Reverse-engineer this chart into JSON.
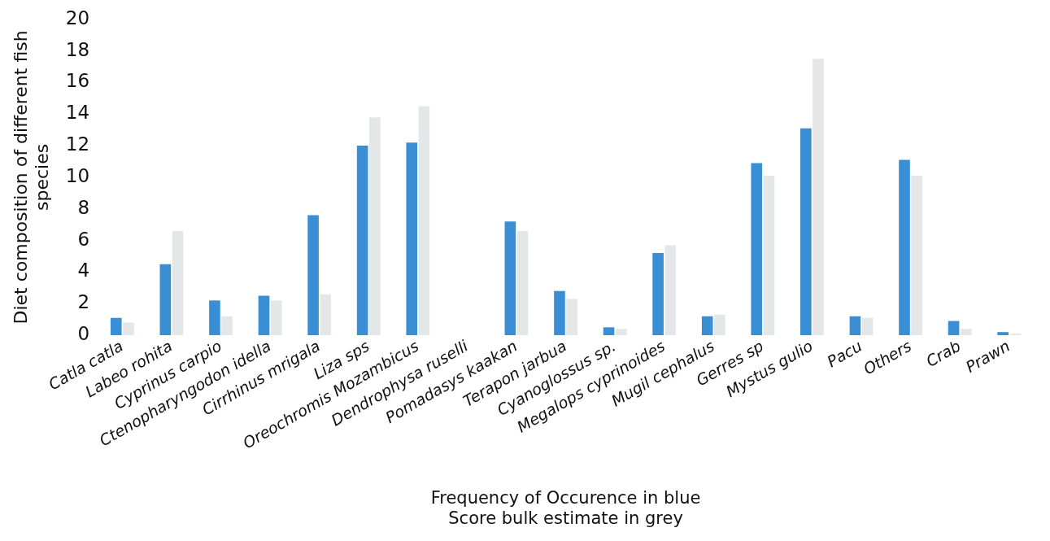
{
  "chart_data": {
    "type": "bar",
    "xlabel": "Frequency of Occurence in blue\nScore bulk estimate in grey",
    "ylabel": "Diet composition of different fish\nspecies",
    "categories": [
      "Catla catla",
      "Labeo rohita",
      "Cyprinus carpio",
      "Ctenopharyngodon idella",
      "Cirrhinus mrigala",
      "Liza sps",
      "Oreochromis Mozambicus",
      "Dendrophysa ruselli",
      "Pomadasys kaakan",
      "Terapon jarbua",
      "Cyanoglossus sp.",
      "Megalops cyprinoides",
      "Mugil cephalus",
      "Gerres sp",
      "Mystus gulio",
      "Pacu",
      "Others",
      "Crab",
      "Prawn"
    ],
    "series": [
      {
        "color": "#3a8fd4",
        "values": [
          1.1,
          4.5,
          2.2,
          2.5,
          7.6,
          12.0,
          12.2,
          0,
          7.2,
          2.8,
          0.5,
          5.2,
          1.2,
          10.9,
          13.1,
          1.2,
          11.1,
          0.9,
          0.2
        ]
      },
      {
        "color": "#e4e7e8",
        "values": [
          0.8,
          6.6,
          1.2,
          2.2,
          2.6,
          13.8,
          14.5,
          0,
          6.6,
          2.3,
          0.4,
          5.7,
          1.3,
          10.1,
          17.5,
          1.1,
          10.1,
          0.4,
          0.1
        ]
      }
    ],
    "ylim": [
      0,
      20
    ],
    "yticks": [
      0,
      2,
      4,
      6,
      8,
      10,
      12,
      14,
      16,
      18,
      20
    ],
    "grid": false,
    "legend": false
  }
}
